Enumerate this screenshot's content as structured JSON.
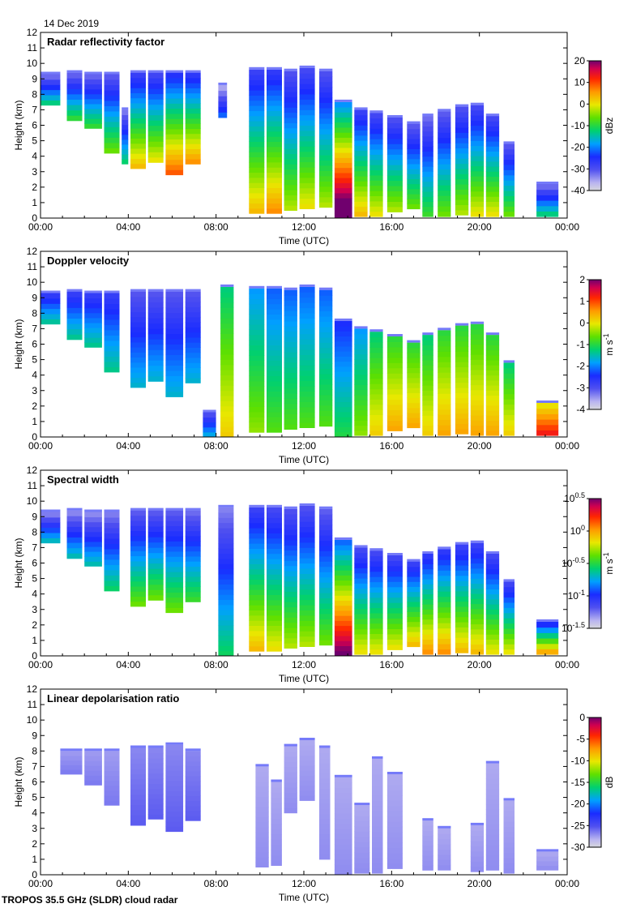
{
  "date": "14 Dec 2019",
  "footer": "TROPOS 35.5 GHz (SLDR) cloud radar",
  "chart_data": [
    {
      "type": "heatmap",
      "title": "Radar reflectivity factor",
      "xlabel": "Time (UTC)",
      "ylabel": "Height (km)",
      "xticks": [
        "00:00",
        "04:00",
        "08:00",
        "12:00",
        "16:00",
        "20:00",
        "00:00"
      ],
      "yticks": [
        "0",
        "1",
        "2",
        "3",
        "4",
        "5",
        "6",
        "7",
        "8",
        "9",
        "10",
        "11",
        "12"
      ],
      "xlim": [
        0,
        24
      ],
      "ylim": [
        0,
        12
      ],
      "colorbar": {
        "label": "dBz",
        "ticks": [
          "20",
          "10",
          "0",
          "-10",
          "-20",
          "-30",
          "-40"
        ],
        "range": [
          -40,
          20
        ]
      },
      "columns": [
        {
          "t0": 0.0,
          "t1": 0.9,
          "bot": 7.3,
          "top": 9.3,
          "core": 0.3
        },
        {
          "t0": 1.2,
          "t1": 1.9,
          "bot": 6.3,
          "top": 9.4,
          "core": 0.35
        },
        {
          "t0": 2.0,
          "t1": 2.8,
          "bot": 5.8,
          "top": 9.3,
          "core": 0.35
        },
        {
          "t0": 2.9,
          "t1": 3.6,
          "bot": 4.2,
          "top": 9.3,
          "core": 0.4
        },
        {
          "t0": 3.7,
          "t1": 4.0,
          "bot": 3.5,
          "top": 7.0,
          "core": 0.3
        },
        {
          "t0": 4.1,
          "t1": 4.8,
          "bot": 3.2,
          "top": 9.4,
          "core": 0.55
        },
        {
          "t0": 4.9,
          "t1": 5.6,
          "bot": 3.6,
          "top": 9.4,
          "core": 0.5
        },
        {
          "t0": 5.7,
          "t1": 6.5,
          "bot": 2.8,
          "top": 9.4,
          "core": 0.65
        },
        {
          "t0": 6.6,
          "t1": 7.3,
          "bot": 3.5,
          "top": 9.4,
          "core": 0.6
        },
        {
          "t0": 8.1,
          "t1": 8.5,
          "bot": 6.5,
          "top": 8.6,
          "core": 0.15
        },
        {
          "t0": 9.5,
          "t1": 10.2,
          "bot": 0.3,
          "top": 9.6,
          "core": 0.55
        },
        {
          "t0": 10.3,
          "t1": 11.0,
          "bot": 0.3,
          "top": 9.6,
          "core": 0.6
        },
        {
          "t0": 11.1,
          "t1": 11.7,
          "bot": 0.5,
          "top": 9.5,
          "core": 0.45
        },
        {
          "t0": 11.8,
          "t1": 12.5,
          "bot": 0.6,
          "top": 9.7,
          "core": 0.5
        },
        {
          "t0": 12.7,
          "t1": 13.3,
          "bot": 0.7,
          "top": 9.5,
          "core": 0.45
        },
        {
          "t0": 13.4,
          "t1": 14.2,
          "bot": 0.0,
          "top": 7.5,
          "core": 0.95
        },
        {
          "t0": 14.3,
          "t1": 14.9,
          "bot": 0.1,
          "top": 7.0,
          "core": 0.55
        },
        {
          "t0": 15.0,
          "t1": 15.6,
          "bot": 0.1,
          "top": 6.8,
          "core": 0.5
        },
        {
          "t0": 15.8,
          "t1": 16.5,
          "bot": 0.4,
          "top": 6.5,
          "core": 0.45
        },
        {
          "t0": 16.7,
          "t1": 17.3,
          "bot": 0.6,
          "top": 6.1,
          "core": 0.4
        },
        {
          "t0": 17.4,
          "t1": 17.9,
          "bot": 0.1,
          "top": 6.6,
          "core": 0.35
        },
        {
          "t0": 18.1,
          "t1": 18.7,
          "bot": 0.1,
          "top": 6.9,
          "core": 0.4
        },
        {
          "t0": 18.9,
          "t1": 19.5,
          "bot": 0.2,
          "top": 7.2,
          "core": 0.45
        },
        {
          "t0": 19.6,
          "t1": 20.2,
          "bot": 0.1,
          "top": 7.3,
          "core": 0.5
        },
        {
          "t0": 20.3,
          "t1": 20.9,
          "bot": 0.1,
          "top": 6.6,
          "core": 0.5
        },
        {
          "t0": 21.1,
          "t1": 21.6,
          "bot": 0.1,
          "top": 4.8,
          "core": 0.4
        },
        {
          "t0": 22.6,
          "t1": 23.6,
          "bot": 0.1,
          "top": 2.2,
          "core": 0.3
        }
      ]
    },
    {
      "type": "heatmap",
      "title": "Doppler velocity",
      "xlabel": "Time (UTC)",
      "ylabel": "Height (km)",
      "xticks": [
        "00:00",
        "04:00",
        "08:00",
        "12:00",
        "16:00",
        "20:00",
        "00:00"
      ],
      "yticks": [
        "0",
        "1",
        "2",
        "3",
        "4",
        "5",
        "6",
        "7",
        "8",
        "9",
        "10",
        "11",
        "12"
      ],
      "xlim": [
        0,
        24
      ],
      "ylim": [
        0,
        12
      ],
      "colorbar": {
        "label": "m s-1",
        "ticks": [
          "2",
          "1",
          "0",
          "-1",
          "-2",
          "-3",
          "-4"
        ],
        "range": [
          -4,
          2
        ]
      },
      "columns": [
        {
          "t0": 0.0,
          "t1": 0.9,
          "bot": 7.3,
          "top": 9.3,
          "core": 0.45
        },
        {
          "t0": 1.2,
          "t1": 1.9,
          "bot": 6.3,
          "top": 9.4,
          "core": 0.45
        },
        {
          "t0": 2.0,
          "t1": 2.8,
          "bot": 5.8,
          "top": 9.3,
          "core": 0.45
        },
        {
          "t0": 2.9,
          "t1": 3.6,
          "bot": 4.2,
          "top": 9.3,
          "core": 0.45
        },
        {
          "t0": 4.1,
          "t1": 4.8,
          "bot": 3.2,
          "top": 9.4,
          "core": 0.4
        },
        {
          "t0": 4.9,
          "t1": 5.6,
          "bot": 3.6,
          "top": 9.4,
          "core": 0.4
        },
        {
          "t0": 5.7,
          "t1": 6.5,
          "bot": 2.6,
          "top": 9.4,
          "core": 0.4
        },
        {
          "t0": 6.6,
          "t1": 7.3,
          "bot": 3.5,
          "top": 9.4,
          "core": 0.4
        },
        {
          "t0": 7.4,
          "t1": 8.0,
          "bot": 0.0,
          "top": 1.6,
          "core": 0.4
        },
        {
          "t0": 8.2,
          "t1": 8.8,
          "bot": 0.0,
          "top": 9.7,
          "core": 0.7
        },
        {
          "t0": 9.5,
          "t1": 10.2,
          "bot": 0.3,
          "top": 9.6,
          "core": 0.6
        },
        {
          "t0": 10.3,
          "t1": 11.0,
          "bot": 0.3,
          "top": 9.6,
          "core": 0.55
        },
        {
          "t0": 11.1,
          "t1": 11.7,
          "bot": 0.5,
          "top": 9.5,
          "core": 0.55
        },
        {
          "t0": 11.8,
          "t1": 12.5,
          "bot": 0.6,
          "top": 9.7,
          "core": 0.55
        },
        {
          "t0": 12.7,
          "t1": 13.3,
          "bot": 0.7,
          "top": 9.5,
          "core": 0.55
        },
        {
          "t0": 13.4,
          "t1": 14.2,
          "bot": 0.0,
          "top": 7.5,
          "core": 0.5
        },
        {
          "t0": 14.3,
          "t1": 14.9,
          "bot": 0.1,
          "top": 7.0,
          "core": 0.6
        },
        {
          "t0": 15.0,
          "t1": 15.6,
          "bot": 0.1,
          "top": 6.8,
          "core": 0.7
        },
        {
          "t0": 15.8,
          "t1": 16.5,
          "bot": 0.4,
          "top": 6.5,
          "core": 0.75
        },
        {
          "t0": 16.7,
          "t1": 17.3,
          "bot": 0.6,
          "top": 6.1,
          "core": 0.75
        },
        {
          "t0": 17.4,
          "t1": 17.9,
          "bot": 0.1,
          "top": 6.6,
          "core": 0.7
        },
        {
          "t0": 18.1,
          "t1": 18.7,
          "bot": 0.1,
          "top": 6.9,
          "core": 0.75
        },
        {
          "t0": 18.9,
          "t1": 19.5,
          "bot": 0.2,
          "top": 7.2,
          "core": 0.75
        },
        {
          "t0": 19.6,
          "t1": 20.2,
          "bot": 0.1,
          "top": 7.3,
          "core": 0.75
        },
        {
          "t0": 20.3,
          "t1": 20.9,
          "bot": 0.1,
          "top": 6.6,
          "core": 0.75
        },
        {
          "t0": 21.1,
          "t1": 21.6,
          "bot": 0.1,
          "top": 4.8,
          "core": 0.7
        },
        {
          "t0": 22.6,
          "t1": 23.6,
          "bot": 0.1,
          "top": 2.2,
          "core": 0.9
        }
      ]
    },
    {
      "type": "heatmap",
      "title": "Spectral width",
      "xlabel": "Time (UTC)",
      "ylabel": "Height (km)",
      "xticks": [
        "00:00",
        "04:00",
        "08:00",
        "12:00",
        "16:00",
        "20:00",
        "00:00"
      ],
      "yticks": [
        "0",
        "1",
        "2",
        "3",
        "4",
        "5",
        "6",
        "7",
        "8",
        "9",
        "10",
        "11",
        "12"
      ],
      "xlim": [
        0,
        24
      ],
      "ylim": [
        0,
        12
      ],
      "colorbar": {
        "label": "m s-1",
        "ticks": [
          "10^0.5",
          "10^0",
          "10^-0.5",
          "10^-1",
          "10^-1.5"
        ],
        "range": [
          -1.5,
          0.5
        ]
      },
      "columns": [
        {
          "t0": 0.0,
          "t1": 0.9,
          "bot": 7.3,
          "top": 9.3,
          "core": 0.25
        },
        {
          "t0": 1.2,
          "t1": 1.9,
          "bot": 6.3,
          "top": 9.4,
          "core": 0.25
        },
        {
          "t0": 2.0,
          "t1": 2.8,
          "bot": 5.8,
          "top": 9.3,
          "core": 0.25
        },
        {
          "t0": 2.9,
          "t1": 3.6,
          "bot": 4.2,
          "top": 9.3,
          "core": 0.3
        },
        {
          "t0": 4.1,
          "t1": 4.8,
          "bot": 3.2,
          "top": 9.4,
          "core": 0.4
        },
        {
          "t0": 4.9,
          "t1": 5.6,
          "bot": 3.6,
          "top": 9.4,
          "core": 0.4
        },
        {
          "t0": 5.7,
          "t1": 6.5,
          "bot": 2.8,
          "top": 9.4,
          "core": 0.4
        },
        {
          "t0": 6.6,
          "t1": 7.3,
          "bot": 3.5,
          "top": 9.4,
          "core": 0.35
        },
        {
          "t0": 8.1,
          "t1": 8.8,
          "bot": 0.0,
          "top": 9.6,
          "core": 0.3
        },
        {
          "t0": 9.5,
          "t1": 10.2,
          "bot": 0.3,
          "top": 9.6,
          "core": 0.55
        },
        {
          "t0": 10.3,
          "t1": 11.0,
          "bot": 0.3,
          "top": 9.6,
          "core": 0.5
        },
        {
          "t0": 11.1,
          "t1": 11.7,
          "bot": 0.5,
          "top": 9.5,
          "core": 0.45
        },
        {
          "t0": 11.8,
          "t1": 12.5,
          "bot": 0.6,
          "top": 9.7,
          "core": 0.45
        },
        {
          "t0": 12.7,
          "t1": 13.3,
          "bot": 0.7,
          "top": 9.5,
          "core": 0.4
        },
        {
          "t0": 13.4,
          "t1": 14.2,
          "bot": 0.0,
          "top": 7.5,
          "core": 0.85
        },
        {
          "t0": 14.3,
          "t1": 14.9,
          "bot": 0.1,
          "top": 7.0,
          "core": 0.5
        },
        {
          "t0": 15.0,
          "t1": 15.6,
          "bot": 0.1,
          "top": 6.8,
          "core": 0.5
        },
        {
          "t0": 15.8,
          "t1": 16.5,
          "bot": 0.4,
          "top": 6.5,
          "core": 0.5
        },
        {
          "t0": 16.7,
          "t1": 17.3,
          "bot": 0.6,
          "top": 6.1,
          "core": 0.55
        },
        {
          "t0": 17.4,
          "t1": 17.9,
          "bot": 0.1,
          "top": 6.6,
          "core": 0.6
        },
        {
          "t0": 18.1,
          "t1": 18.7,
          "bot": 0.1,
          "top": 6.9,
          "core": 0.6
        },
        {
          "t0": 18.9,
          "t1": 19.5,
          "bot": 0.2,
          "top": 7.2,
          "core": 0.55
        },
        {
          "t0": 19.6,
          "t1": 20.2,
          "bot": 0.1,
          "top": 7.3,
          "core": 0.55
        },
        {
          "t0": 20.3,
          "t1": 20.9,
          "bot": 0.1,
          "top": 6.6,
          "core": 0.5
        },
        {
          "t0": 21.1,
          "t1": 21.6,
          "bot": 0.1,
          "top": 4.8,
          "core": 0.5
        },
        {
          "t0": 22.6,
          "t1": 23.6,
          "bot": 0.1,
          "top": 2.2,
          "core": 0.6
        }
      ]
    },
    {
      "type": "heatmap",
      "title": "Linear depolarisation ratio",
      "xlabel": "Time (UTC)",
      "ylabel": "Height (km)",
      "xticks": [
        "00:00",
        "04:00",
        "08:00",
        "12:00",
        "16:00",
        "20:00",
        "00:00"
      ],
      "yticks": [
        "0",
        "1",
        "2",
        "3",
        "4",
        "5",
        "6",
        "7",
        "8",
        "9",
        "10",
        "11",
        "12"
      ],
      "xlim": [
        0,
        24
      ],
      "ylim": [
        0,
        12
      ],
      "colorbar": {
        "label": "dB",
        "ticks": [
          "0",
          "-5",
          "-10",
          "-15",
          "-20",
          "-25",
          "-30"
        ],
        "range": [
          -30,
          0
        ]
      },
      "columns": [
        {
          "t0": 0.9,
          "t1": 1.9,
          "bot": 6.5,
          "top": 8.0,
          "core": 0.12
        },
        {
          "t0": 2.0,
          "t1": 2.8,
          "bot": 5.8,
          "top": 8.0,
          "core": 0.12
        },
        {
          "t0": 2.9,
          "t1": 3.6,
          "bot": 4.5,
          "top": 8.0,
          "core": 0.12
        },
        {
          "t0": 4.1,
          "t1": 4.8,
          "bot": 3.2,
          "top": 8.2,
          "core": 0.15
        },
        {
          "t0": 4.9,
          "t1": 5.6,
          "bot": 3.6,
          "top": 8.2,
          "core": 0.15
        },
        {
          "t0": 5.7,
          "t1": 6.5,
          "bot": 2.8,
          "top": 8.4,
          "core": 0.15
        },
        {
          "t0": 6.6,
          "t1": 7.3,
          "bot": 3.5,
          "top": 8.0,
          "core": 0.15
        },
        {
          "t0": 9.8,
          "t1": 10.4,
          "bot": 0.5,
          "top": 7.0,
          "core": 0.1
        },
        {
          "t0": 10.5,
          "t1": 11.0,
          "bot": 0.6,
          "top": 6.0,
          "core": 0.1
        },
        {
          "t0": 11.1,
          "t1": 11.7,
          "bot": 4.0,
          "top": 8.3,
          "core": 0.1
        },
        {
          "t0": 11.8,
          "t1": 12.5,
          "bot": 4.8,
          "top": 8.7,
          "core": 0.1
        },
        {
          "t0": 12.7,
          "t1": 13.2,
          "bot": 1.0,
          "top": 8.2,
          "core": 0.1
        },
        {
          "t0": 13.4,
          "t1": 14.2,
          "bot": 0.0,
          "top": 6.3,
          "core": 0.1
        },
        {
          "t0": 14.3,
          "t1": 15.0,
          "bot": 0.1,
          "top": 4.5,
          "core": 0.1
        },
        {
          "t0": 15.1,
          "t1": 15.6,
          "bot": 0.1,
          "top": 7.5,
          "core": 0.1
        },
        {
          "t0": 15.8,
          "t1": 16.5,
          "bot": 0.4,
          "top": 6.5,
          "core": 0.1
        },
        {
          "t0": 17.4,
          "t1": 17.9,
          "bot": 0.3,
          "top": 3.5,
          "core": 0.1
        },
        {
          "t0": 18.1,
          "t1": 18.7,
          "bot": 0.3,
          "top": 3.0,
          "core": 0.1
        },
        {
          "t0": 19.6,
          "t1": 20.2,
          "bot": 0.2,
          "top": 3.2,
          "core": 0.1
        },
        {
          "t0": 20.3,
          "t1": 20.9,
          "bot": 0.3,
          "top": 7.2,
          "core": 0.1
        },
        {
          "t0": 21.1,
          "t1": 21.6,
          "bot": 0.1,
          "top": 4.8,
          "core": 0.1
        },
        {
          "t0": 22.6,
          "t1": 23.6,
          "bot": 0.3,
          "top": 1.5,
          "core": 0.1
        }
      ]
    }
  ]
}
